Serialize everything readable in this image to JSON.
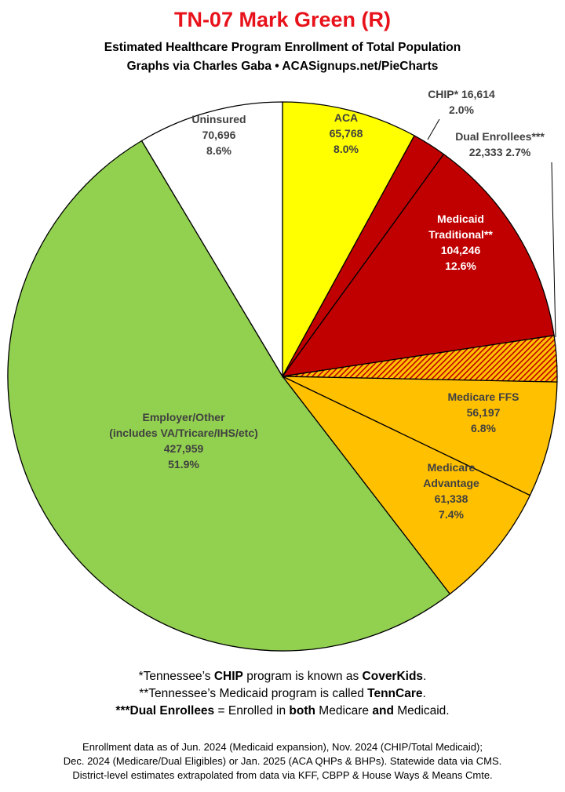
{
  "header": {
    "title": "TN-07 Mark Green (R)",
    "subtitle_line1": "Estimated Healthcare Program Enrollment of Total Population",
    "subtitle_line2": "Graphs via Charles Gaba   •   ACASignups.net/PieCharts"
  },
  "chart_data": {
    "type": "pie",
    "start_angle_deg": 0,
    "direction": "clockwise",
    "slices": [
      {
        "name": "ACA",
        "value": 65768,
        "percent": "8.0%",
        "color": "#ffff00",
        "label_lines": [
          "ACA",
          "65,768",
          "8.0%"
        ],
        "label_color": "#404040"
      },
      {
        "name": "CHIP*",
        "value": 16614,
        "percent": "2.0%",
        "color": "#c00000",
        "label_lines": [
          "CHIP* 16,614",
          "2.0%"
        ],
        "label_color": "#404040",
        "label_outside": true
      },
      {
        "name": "Medicaid Traditional**",
        "value": 104246,
        "percent": "12.6%",
        "color": "#c00000",
        "label_lines": [
          "Medicaid",
          "Traditional**",
          "104,246",
          "12.6%"
        ],
        "label_color": "#ffffff"
      },
      {
        "name": "Dual Enrollees***",
        "value": 22333,
        "percent": "2.7%",
        "color": "#c00000",
        "pattern": "hatch",
        "label_lines": [
          "Dual Enrollees***",
          "22,333 2.7%"
        ],
        "label_color": "#404040",
        "label_outside": true
      },
      {
        "name": "Medicare FFS",
        "value": 56197,
        "percent": "6.8%",
        "color": "#ffc000",
        "label_lines": [
          "Medicare FFS",
          "56,197",
          "6.8%"
        ],
        "label_color": "#404040"
      },
      {
        "name": "Medicare Advantage",
        "value": 61338,
        "percent": "7.4%",
        "color": "#ffc000",
        "label_lines": [
          "Medicare",
          "Advantage",
          "61,338",
          "7.4%"
        ],
        "label_color": "#404040"
      },
      {
        "name": "Employer/Other",
        "value": 427959,
        "percent": "51.9%",
        "color": "#92d050",
        "label_lines": [
          "Employer/Other",
          "(includes VA/Tricare/IHS/etc)",
          "427,959",
          "51.9%"
        ],
        "label_color": "#404040"
      },
      {
        "name": "Uninsured",
        "value": 70696,
        "percent": "8.6%",
        "color": "#ffffff",
        "label_lines": [
          "Uninsured",
          "70,696",
          "8.6%"
        ],
        "label_color": "#404040"
      }
    ],
    "legend": "none"
  },
  "notes": {
    "line1_pre": "*Tennessee’s ",
    "line1_b1": "CHIP",
    "line1_mid": " program is known as ",
    "line1_b2": "CoverKids",
    "line1_end": ".",
    "line2_pre": "**Tennessee’s Medicaid program is called ",
    "line2_b1": "TennCare",
    "line2_end": ".",
    "line3_b1": "***Dual Enrollees",
    "line3_mid1": " = Enrolled in ",
    "line3_b2": "both",
    "line3_mid2": " Medicare ",
    "line3_b3": "and",
    "line3_end": " Medicaid."
  },
  "footer": {
    "line1": "Enrollment data as of Jun. 2024 (Medicaid expansion), Nov. 2024 (CHIP/Total Medicaid);",
    "line2": "Dec. 2024 (Medicare/Dual Eligibles) or Jan. 2025 (ACA QHPs & BHPs). Statewide data via CMS.",
    "line3": "District-level estimates extrapolated from data via KFF, CBPP & House Ways & Means Cmte."
  }
}
